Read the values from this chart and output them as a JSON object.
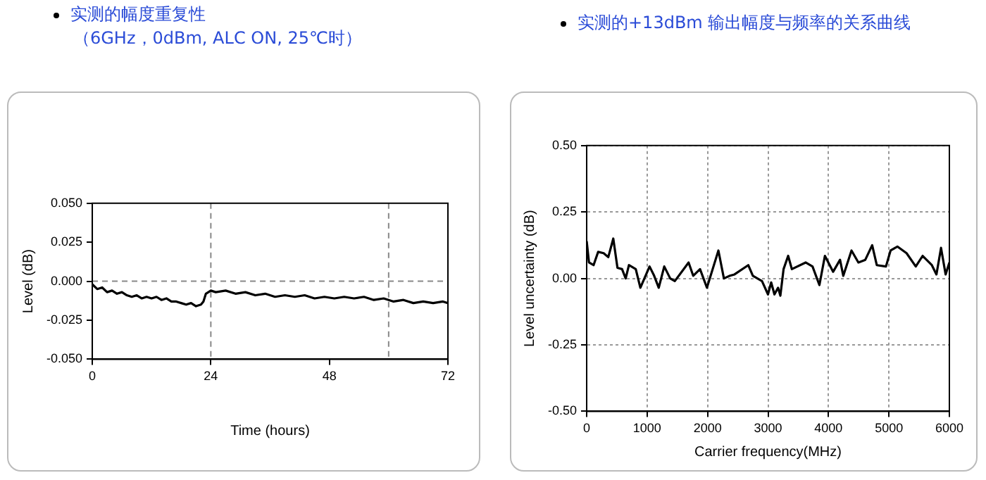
{
  "chart_data": [
    {
      "type": "line",
      "title": "实测的幅度重复性",
      "subtitle": "（6GHz，0dBm, ALC ON, 25℃时）",
      "xlabel": "Time (hours)",
      "ylabel": "Level (dB)",
      "series": [
        {
          "color": "#000000",
          "x": [
            0,
            1,
            2,
            3,
            4,
            5,
            6,
            7,
            8,
            9,
            10,
            11,
            12,
            13,
            14,
            15,
            16,
            17,
            18,
            19,
            20,
            21,
            22,
            22.5,
            23,
            24,
            25,
            27,
            29,
            31,
            33,
            35,
            37,
            39,
            41,
            43,
            45,
            47,
            49,
            51,
            53,
            55,
            57,
            59,
            61,
            63,
            65,
            67,
            69,
            71,
            72
          ],
          "values": [
            -0.002,
            -0.005,
            -0.004,
            -0.007,
            -0.006,
            -0.008,
            -0.007,
            -0.009,
            -0.01,
            -0.009,
            -0.011,
            -0.01,
            -0.011,
            -0.01,
            -0.012,
            -0.011,
            -0.013,
            -0.013,
            -0.014,
            -0.015,
            -0.014,
            -0.016,
            -0.015,
            -0.013,
            -0.008,
            -0.006,
            -0.007,
            -0.006,
            -0.008,
            -0.007,
            -0.009,
            -0.008,
            -0.01,
            -0.009,
            -0.01,
            -0.009,
            -0.011,
            -0.01,
            -0.011,
            -0.01,
            -0.011,
            -0.01,
            -0.012,
            -0.011,
            -0.013,
            -0.012,
            -0.014,
            -0.013,
            -0.014,
            -0.013,
            -0.014
          ]
        }
      ],
      "xlim": [
        0,
        72
      ],
      "xticks": [
        0,
        24,
        48,
        72
      ],
      "ylim": [
        -0.05,
        0.05
      ],
      "yticks": [
        {
          "value": -0.05,
          "label": "-0.050"
        },
        {
          "value": -0.025,
          "label": "-0.025"
        },
        {
          "value": 0,
          "label": "0.000"
        },
        {
          "value": 0.025,
          "label": "0.025"
        },
        {
          "value": 0.05,
          "label": "0.050"
        }
      ],
      "ref_lines": [
        {
          "axis": "x",
          "value": 24,
          "color": "#888888",
          "line_style": "dashed"
        },
        {
          "axis": "x",
          "value": 60,
          "color": "#888888",
          "line_style": "dashed"
        },
        {
          "axis": "y",
          "value": 0,
          "color": "#888888",
          "line_style": "dashed"
        }
      ],
      "grid": false,
      "legend": false,
      "marker": "none",
      "line_style": "solid"
    },
    {
      "type": "line",
      "title": "实测的+13dBm 输出幅度与频率的关系曲线",
      "xlabel": "Carrier frequency(MHz)",
      "ylabel": "Level uncertainty (dB)",
      "series": [
        {
          "color": "#000000",
          "x": [
            0,
            38,
            114,
            190,
            281,
            357,
            440,
            509,
            585,
            645,
            699,
            812,
            888,
            1040,
            1116,
            1192,
            1283,
            1382,
            1458,
            1686,
            1762,
            1875,
            1989,
            2179,
            2270,
            2369,
            2445,
            2673,
            2749,
            2900,
            2999,
            3052,
            3106,
            3166,
            3204,
            3257,
            3333,
            3394,
            3622,
            3736,
            3850,
            3941,
            4077,
            4191,
            4245,
            4381,
            4495,
            4609,
            4723,
            4799,
            4951,
            5027,
            5140,
            5292,
            5444,
            5558,
            5710,
            5786,
            5862,
            5938,
            6000
          ],
          "values": [
            0.14,
            0.06,
            0.05,
            0.1,
            0.095,
            0.08,
            0.15,
            0.04,
            0.035,
            0.0,
            0.05,
            0.035,
            -0.035,
            0.045,
            0.01,
            -0.035,
            0.045,
            0.0,
            -0.01,
            0.06,
            0.01,
            0.035,
            -0.035,
            0.105,
            0.0,
            0.01,
            0.015,
            0.05,
            0.01,
            -0.01,
            -0.06,
            -0.015,
            -0.06,
            -0.035,
            -0.065,
            0.035,
            0.085,
            0.035,
            0.06,
            0.045,
            -0.025,
            0.085,
            0.025,
            0.07,
            0.01,
            0.105,
            0.06,
            0.07,
            0.125,
            0.05,
            0.045,
            0.105,
            0.12,
            0.095,
            0.045,
            0.085,
            0.05,
            0.015,
            0.115,
            0.015,
            0.06
          ]
        }
      ],
      "xlim": [
        0,
        6000
      ],
      "xticks": [
        0,
        1000,
        2000,
        3000,
        4000,
        5000,
        6000
      ],
      "ylim": [
        -0.5,
        0.5
      ],
      "yticks": [
        {
          "value": -0.5,
          "label": "-0.50"
        },
        {
          "value": -0.25,
          "label": "-0.25"
        },
        {
          "value": 0,
          "label": "0.00"
        },
        {
          "value": 0.25,
          "label": "0.25"
        },
        {
          "value": 0.5,
          "label": "0.50"
        }
      ],
      "grid": true,
      "legend": false,
      "marker": "none",
      "line_style": "solid"
    }
  ]
}
